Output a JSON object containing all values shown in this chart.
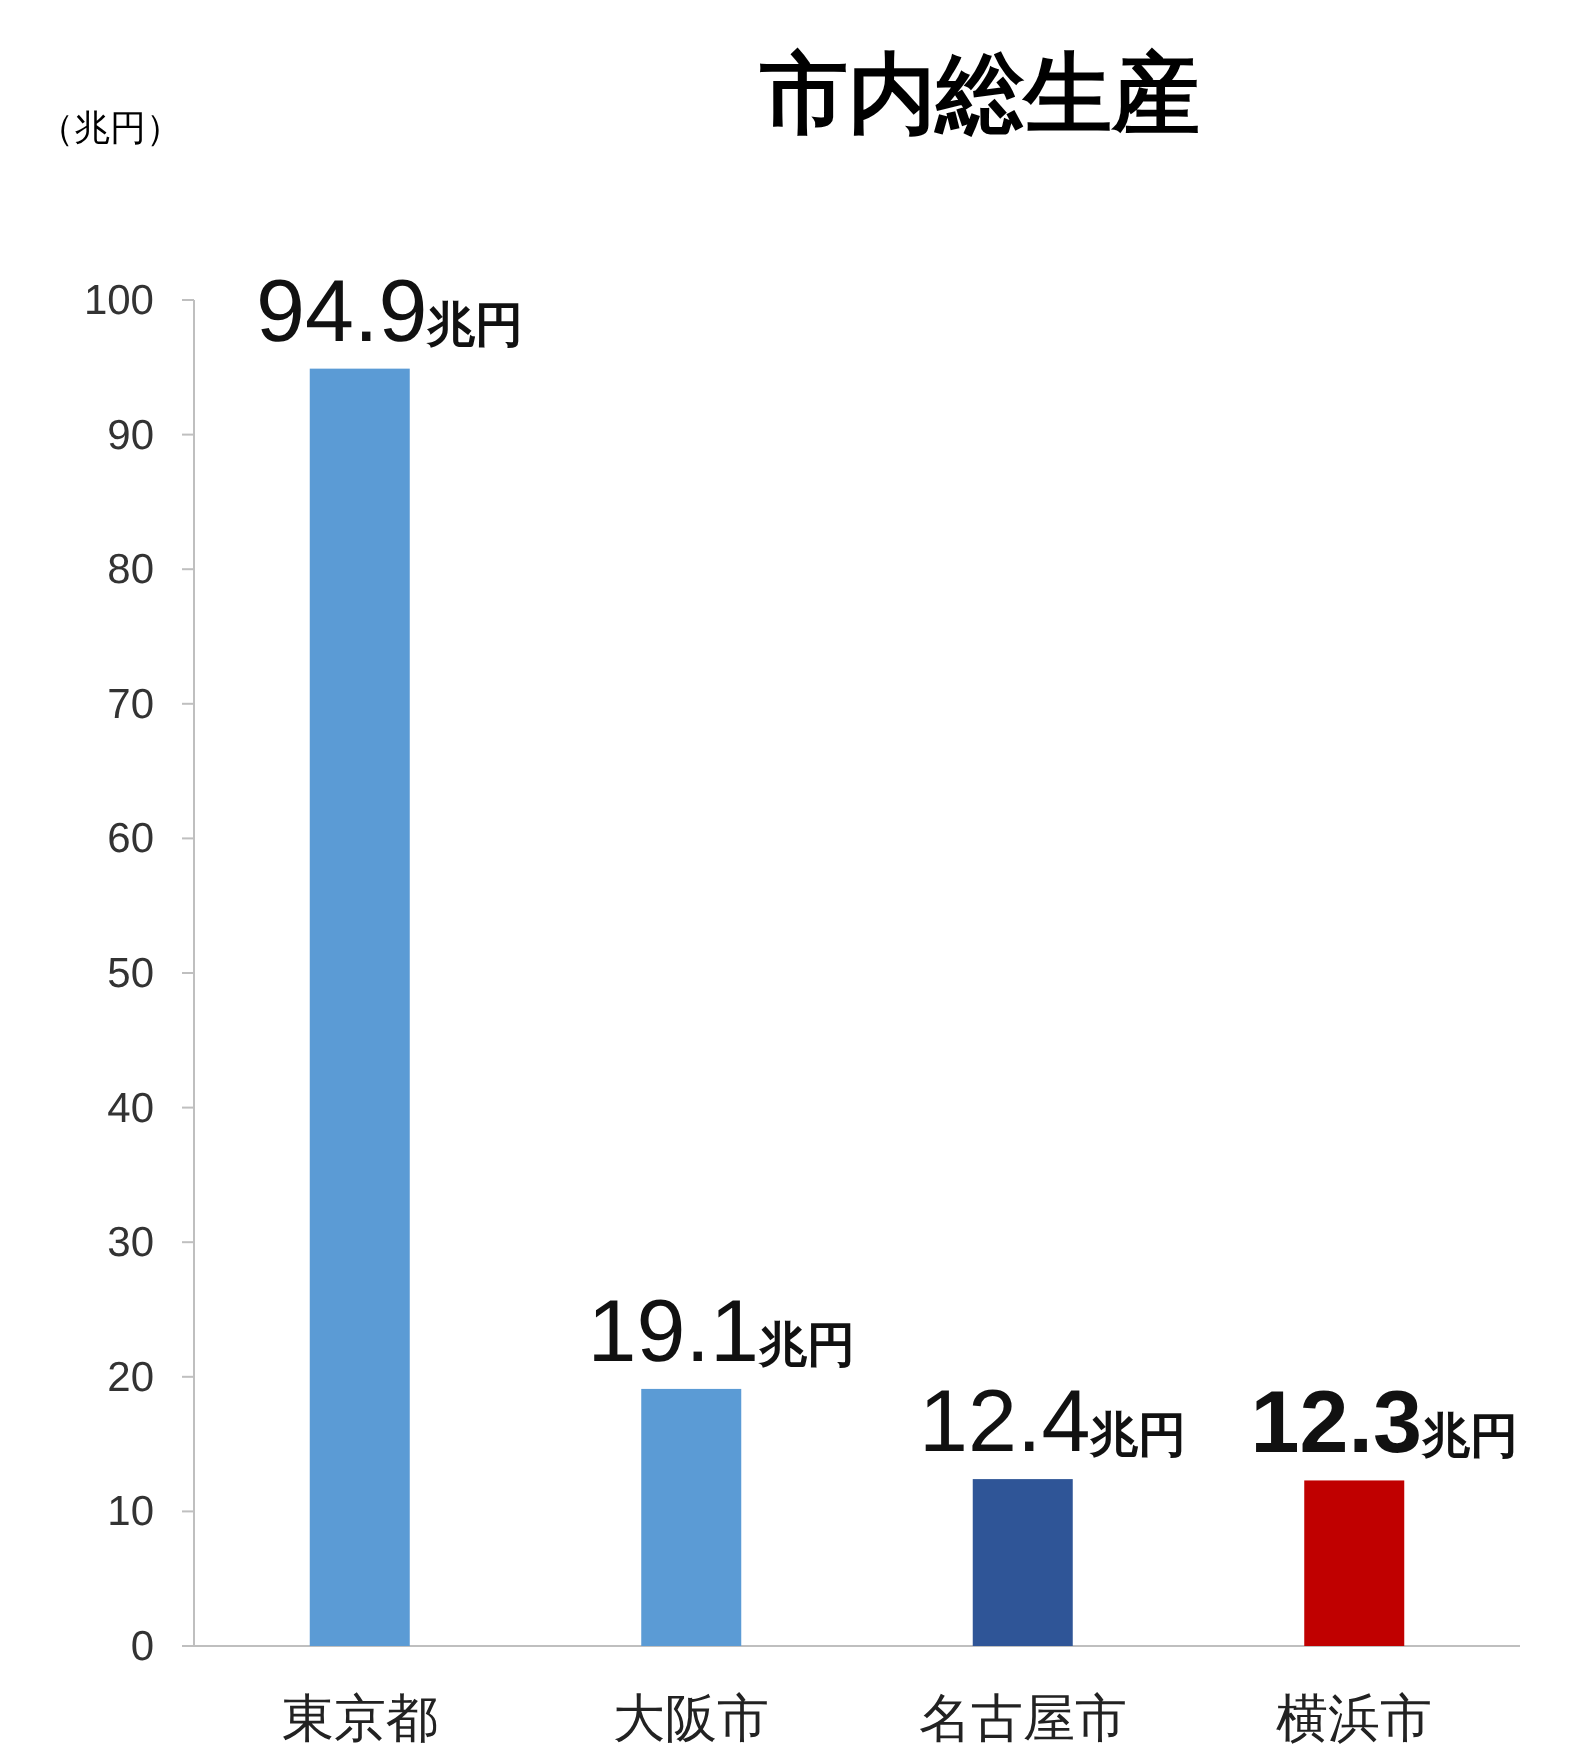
{
  "chart_data": {
    "type": "bar",
    "title": "市内総生産",
    "ylabel": "（兆円）",
    "categories": [
      "東京都",
      "大阪市",
      "名古屋市",
      "横浜市"
    ],
    "values": [
      94.9,
      19.1,
      12.4,
      12.3
    ],
    "colors": [
      "#5b9bd5",
      "#5b9bd5",
      "#2f5597",
      "#c00000"
    ],
    "value_labels": [
      "94.9兆円",
      "19.1兆円",
      "12.4兆円",
      "12.3兆円"
    ],
    "ylim": [
      0,
      100
    ],
    "yticks": [
      0,
      10,
      20,
      30,
      40,
      50,
      60,
      70,
      80,
      90,
      100
    ],
    "grid": false
  }
}
